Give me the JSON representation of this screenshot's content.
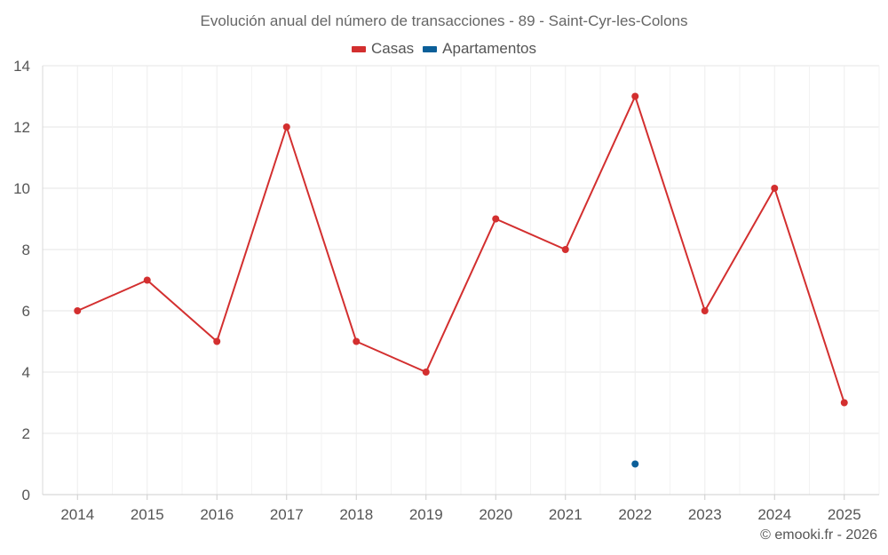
{
  "chart_data": {
    "type": "line",
    "title": "Evolución anual del número de transacciones - 89 - Saint-Cyr-les-Colons",
    "categories": [
      "2014",
      "2015",
      "2016",
      "2017",
      "2018",
      "2019",
      "2020",
      "2021",
      "2022",
      "2023",
      "2024",
      "2025"
    ],
    "series": [
      {
        "name": "Casas",
        "color": "#d32f2f",
        "values": [
          6,
          7,
          5,
          12,
          5,
          4,
          9,
          8,
          13,
          6,
          10,
          3
        ]
      },
      {
        "name": "Apartamentos",
        "color": "#0b5f99",
        "values": [
          null,
          null,
          null,
          null,
          null,
          null,
          null,
          null,
          1,
          null,
          null,
          null
        ]
      }
    ],
    "ylim": [
      0,
      14
    ],
    "yticks": [
      0,
      2,
      4,
      6,
      8,
      10,
      12,
      14
    ],
    "grid": true,
    "legend": "top-center"
  },
  "credit": "© emooki.fr - 2026"
}
